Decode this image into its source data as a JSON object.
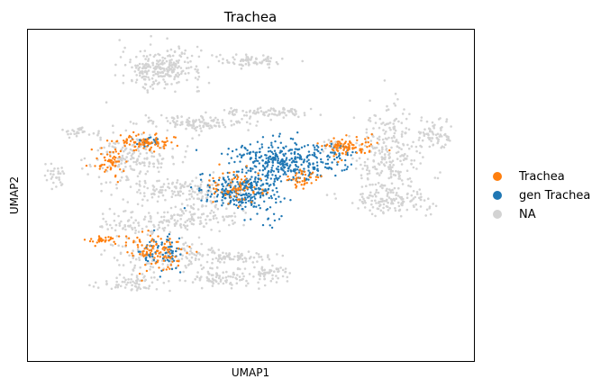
{
  "chart_data": {
    "type": "scatter",
    "title": "Trachea",
    "xlabel": "UMAP1",
    "ylabel": "UMAP2",
    "xlim": [
      -10,
      20
    ],
    "ylim": [
      -10,
      20
    ],
    "grid": false,
    "axis_ticks_shown": false,
    "legend": {
      "placement": "right",
      "entries": [
        {
          "label": "Trachea",
          "color": "#ff7f0e"
        },
        {
          "label": "gen Trachea",
          "color": "#1f77b4"
        },
        {
          "label": "NA",
          "color": "#d3d3d3"
        }
      ]
    },
    "series": [
      {
        "name": "NA",
        "color": "#d3d3d3",
        "clusters": [
          {
            "center": [
              -1.0,
              16.5
            ],
            "spread": [
              2.5,
              1.6
            ],
            "density": 260
          },
          {
            "center": [
              5.0,
              17.2
            ],
            "spread": [
              2.0,
              0.5
            ],
            "density": 70
          },
          {
            "center": [
              1.5,
              11.5
            ],
            "spread": [
              3.5,
              0.6
            ],
            "density": 120
          },
          {
            "center": [
              6.0,
              12.5
            ],
            "spread": [
              3.0,
              0.5
            ],
            "density": 90
          },
          {
            "center": [
              -6.5,
              10.8
            ],
            "spread": [
              1.0,
              0.4
            ],
            "density": 30
          },
          {
            "center": [
              -3.0,
              8.5
            ],
            "spread": [
              2.5,
              1.8
            ],
            "density": 160
          },
          {
            "center": [
              -8.2,
              6.8
            ],
            "spread": [
              0.6,
              1.1
            ],
            "density": 30
          },
          {
            "center": [
              0.5,
              5.5
            ],
            "spread": [
              4.5,
              1.0
            ],
            "density": 160
          },
          {
            "center": [
              1.0,
              3.0
            ],
            "spread": [
              3.0,
              1.2
            ],
            "density": 140
          },
          {
            "center": [
              -3.0,
              2.5
            ],
            "spread": [
              2.0,
              1.0
            ],
            "density": 60
          },
          {
            "center": [
              -1.0,
              -0.5
            ],
            "spread": [
              3.0,
              1.8
            ],
            "density": 140
          },
          {
            "center": [
              3.5,
              -0.5
            ],
            "spread": [
              2.5,
              0.5
            ],
            "density": 80
          },
          {
            "center": [
              3.0,
              -2.5
            ],
            "spread": [
              2.5,
              0.8
            ],
            "density": 90
          },
          {
            "center": [
              -3.0,
              -3.0
            ],
            "spread": [
              2.5,
              0.7
            ],
            "density": 60
          },
          {
            "center": [
              6.5,
              -2.0
            ],
            "spread": [
              1.2,
              0.7
            ],
            "density": 50
          },
          {
            "center": [
              14.5,
              9.0
            ],
            "spread": [
              2.0,
              3.5
            ],
            "density": 260
          },
          {
            "center": [
              17.5,
              10.5
            ],
            "spread": [
              1.0,
              1.0
            ],
            "density": 60
          },
          {
            "center": [
              14.5,
              4.5
            ],
            "spread": [
              2.5,
              1.2
            ],
            "density": 130
          },
          {
            "center": [
              10.5,
              9.5
            ],
            "spread": [
              0.5,
              0.5
            ],
            "density": 20
          }
        ]
      },
      {
        "name": "gen Trachea",
        "color": "#1f77b4",
        "clusters": [
          {
            "center": [
              7.0,
              8.0
            ],
            "spread": [
              3.5,
              1.7
            ],
            "density": 380
          },
          {
            "center": [
              4.3,
              5.3
            ],
            "spread": [
              2.3,
              1.4
            ],
            "density": 260
          },
          {
            "center": [
              -2.0,
              9.8
            ],
            "spread": [
              0.8,
              0.4
            ],
            "density": 30
          },
          {
            "center": [
              -1.0,
              -0.2
            ],
            "spread": [
              1.6,
              1.3
            ],
            "density": 70
          },
          {
            "center": [
              11.0,
              9.0
            ],
            "spread": [
              0.8,
              0.5
            ],
            "density": 15
          },
          {
            "center": [
              6.0,
              3.0
            ],
            "spread": [
              1.0,
              0.8
            ],
            "density": 15
          }
        ]
      },
      {
        "name": "Trachea",
        "color": "#ff7f0e",
        "clusters": [
          {
            "center": [
              -2.0,
              9.8
            ],
            "spread": [
              1.5,
              0.7
            ],
            "density": 90
          },
          {
            "center": [
              -4.5,
              8.0
            ],
            "spread": [
              0.9,
              1.2
            ],
            "density": 60
          },
          {
            "center": [
              11.5,
              9.5
            ],
            "spread": [
              1.5,
              0.8
            ],
            "density": 90
          },
          {
            "center": [
              -1.5,
              0.0
            ],
            "spread": [
              1.8,
              1.5
            ],
            "density": 110
          },
          {
            "center": [
              -5.0,
              1.0
            ],
            "spread": [
              1.0,
              0.3
            ],
            "density": 30
          },
          {
            "center": [
              4.0,
              5.8
            ],
            "spread": [
              2.0,
              1.5
            ],
            "density": 70
          },
          {
            "center": [
              8.5,
              6.5
            ],
            "spread": [
              1.0,
              0.8
            ],
            "density": 40
          }
        ]
      }
    ]
  }
}
